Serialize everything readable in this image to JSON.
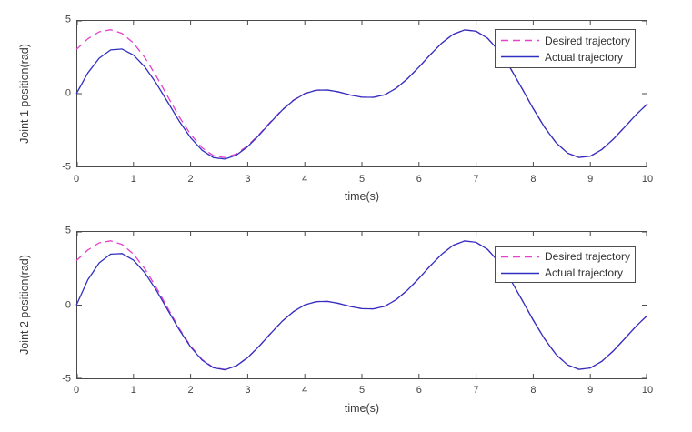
{
  "figure": {
    "background": "#ffffff",
    "axis_color": "#4a4a4a",
    "tick_label_color": "#3f3f3f",
    "desired_color": "#e640cc",
    "actual_color": "#3030c0"
  },
  "chart_data": [
    {
      "type": "line",
      "title": "",
      "xlabel": "time(s)",
      "ylabel": "Joint 1 position(rad)",
      "xlim": [
        0,
        10
      ],
      "ylim": [
        -5,
        5
      ],
      "xticks": [
        0,
        1,
        2,
        3,
        4,
        5,
        6,
        7,
        8,
        9,
        10
      ],
      "yticks": [
        -5,
        0,
        5
      ],
      "grid": false,
      "legend_position": "northeast",
      "x": [
        0,
        0.2,
        0.4,
        0.6,
        0.8,
        1.0,
        1.2,
        1.4,
        1.6,
        1.8,
        2.0,
        2.2,
        2.4,
        2.6,
        2.8,
        3.0,
        3.2,
        3.4,
        3.6,
        3.8,
        4.0,
        4.2,
        4.4,
        4.6,
        4.8,
        5.0,
        5.2,
        5.4,
        5.6,
        5.8,
        6.0,
        6.2,
        6.4,
        6.6,
        6.8,
        7.0,
        7.2,
        7.4,
        7.6,
        7.8,
        8.0,
        8.2,
        8.4,
        8.6,
        8.8,
        9.0,
        9.2,
        9.4,
        9.6,
        9.8,
        10.0
      ],
      "series": [
        {
          "name": "Desired trajectory",
          "style": "dashed",
          "color": "#e640cc",
          "values": [
            3.0,
            3.72,
            4.2,
            4.34,
            4.09,
            3.44,
            2.44,
            1.18,
            -0.2,
            -1.57,
            -2.76,
            -3.67,
            -4.21,
            -4.34,
            -4.09,
            -3.53,
            -2.76,
            -1.91,
            -1.1,
            -0.44,
            0.02,
            0.24,
            0.25,
            0.11,
            -0.09,
            -0.24,
            -0.25,
            -0.08,
            0.37,
            1.02,
            1.81,
            2.66,
            3.44,
            4.04,
            4.33,
            4.24,
            3.76,
            2.9,
            1.73,
            0.38,
            -1.01,
            -2.29,
            -3.33,
            -4.03,
            -4.33,
            -4.24,
            -3.79,
            -3.1,
            -2.27,
            -1.43,
            -0.69
          ]
        },
        {
          "name": "Actual trajectory",
          "style": "solid",
          "color": "#3030c0",
          "values": [
            0.0,
            1.41,
            2.41,
            2.97,
            3.03,
            2.62,
            1.81,
            0.69,
            -0.58,
            -1.86,
            -2.99,
            -3.84,
            -4.34,
            -4.44,
            -4.17,
            -3.59,
            -2.81,
            -1.95,
            -1.13,
            -0.46,
            0.0,
            0.24,
            0.25,
            0.11,
            -0.09,
            -0.24,
            -0.25,
            -0.08,
            0.37,
            1.02,
            1.81,
            2.66,
            3.44,
            4.04,
            4.33,
            4.24,
            3.76,
            2.9,
            1.73,
            0.38,
            -1.01,
            -2.29,
            -3.33,
            -4.03,
            -4.33,
            -4.24,
            -3.79,
            -3.1,
            -2.27,
            -1.43,
            -0.69
          ]
        }
      ]
    },
    {
      "type": "line",
      "title": "",
      "xlabel": "time(s)",
      "ylabel": "Joint 2 position(rad)",
      "xlim": [
        0,
        10
      ],
      "ylim": [
        -5,
        5
      ],
      "xticks": [
        0,
        1,
        2,
        3,
        4,
        5,
        6,
        7,
        8,
        9,
        10
      ],
      "yticks": [
        -5,
        0,
        5
      ],
      "grid": false,
      "legend_position": "northeast",
      "x": [
        0,
        0.2,
        0.4,
        0.6,
        0.8,
        1.0,
        1.2,
        1.4,
        1.6,
        1.8,
        2.0,
        2.2,
        2.4,
        2.6,
        2.8,
        3.0,
        3.2,
        3.4,
        3.6,
        3.8,
        4.0,
        4.2,
        4.4,
        4.6,
        4.8,
        5.0,
        5.2,
        5.4,
        5.6,
        5.8,
        6.0,
        6.2,
        6.4,
        6.6,
        6.8,
        7.0,
        7.2,
        7.4,
        7.6,
        7.8,
        8.0,
        8.2,
        8.4,
        8.6,
        8.8,
        9.0,
        9.2,
        9.4,
        9.6,
        9.8,
        10.0
      ],
      "series": [
        {
          "name": "Desired trajectory",
          "style": "dashed",
          "color": "#e640cc",
          "values": [
            3.0,
            3.72,
            4.2,
            4.34,
            4.09,
            3.44,
            2.44,
            1.18,
            -0.2,
            -1.57,
            -2.76,
            -3.67,
            -4.21,
            -4.34,
            -4.09,
            -3.53,
            -2.76,
            -1.91,
            -1.1,
            -0.44,
            0.02,
            0.24,
            0.25,
            0.11,
            -0.09,
            -0.24,
            -0.25,
            -0.08,
            0.37,
            1.02,
            1.81,
            2.66,
            3.44,
            4.04,
            4.33,
            4.24,
            3.76,
            2.9,
            1.73,
            0.38,
            -1.01,
            -2.29,
            -3.33,
            -4.03,
            -4.33,
            -4.24,
            -3.79,
            -3.1,
            -2.27,
            -1.43,
            -0.69
          ]
        },
        {
          "name": "Actual trajectory",
          "style": "solid",
          "color": "#3030c0",
          "values": [
            0.0,
            1.71,
            2.85,
            3.44,
            3.48,
            3.03,
            2.17,
            1.0,
            -0.33,
            -1.65,
            -2.82,
            -3.71,
            -4.23,
            -4.36,
            -4.1,
            -3.54,
            -2.77,
            -1.92,
            -1.1,
            -0.44,
            0.02,
            0.24,
            0.25,
            0.11,
            -0.09,
            -0.24,
            -0.25,
            -0.08,
            0.37,
            1.02,
            1.81,
            2.66,
            3.44,
            4.04,
            4.33,
            4.24,
            3.76,
            2.9,
            1.73,
            0.38,
            -1.01,
            -2.29,
            -3.33,
            -4.03,
            -4.33,
            -4.24,
            -3.79,
            -3.1,
            -2.27,
            -1.43,
            -0.69
          ]
        }
      ]
    }
  ]
}
